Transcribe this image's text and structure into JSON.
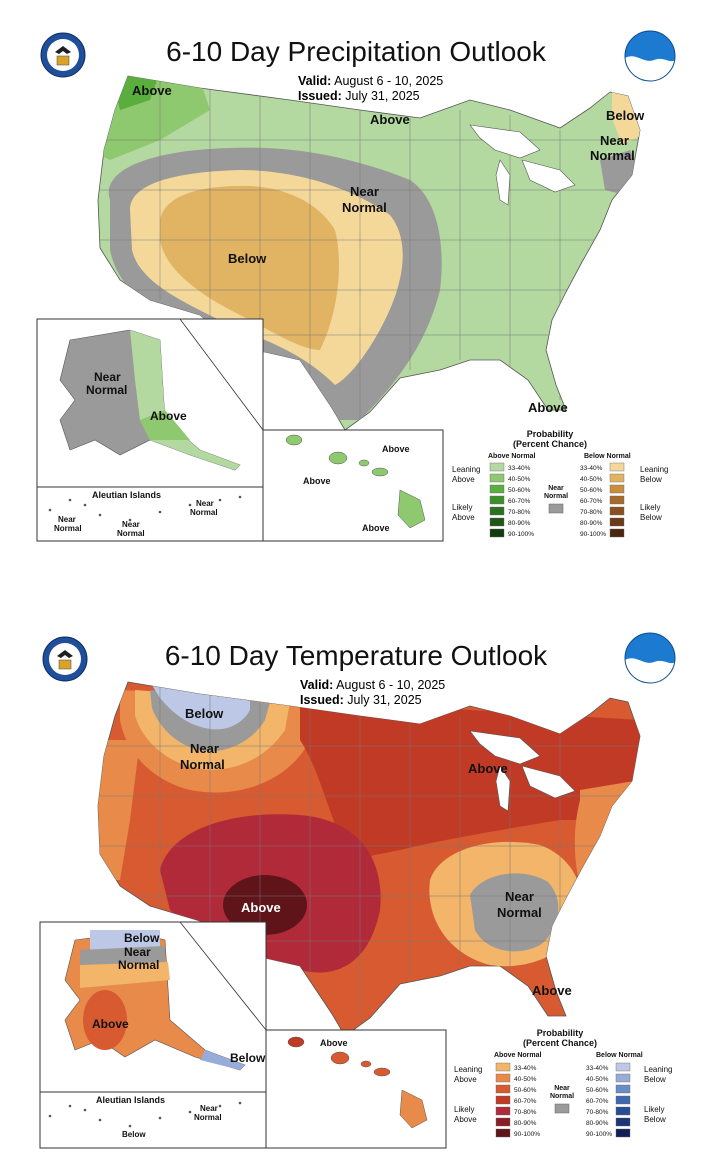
{
  "precip": {
    "title": "6-10 Day Precipitation Outlook",
    "valid_label": "Valid:",
    "valid_value": "August 6 - 10, 2025",
    "issued_label": "Issued:",
    "issued_value": "July 31, 2025",
    "labels": {
      "above_nw": "Above",
      "above_north": "Above",
      "below_ne": "Below",
      "near_ne": "Near",
      "normal_ne": "Normal",
      "near_central": "Near",
      "normal_central": "Normal",
      "below_sw": "Below",
      "above_fl": "Above",
      "ak_near": "Near",
      "ak_normal": "Normal",
      "ak_above": "Above",
      "aleutian_title": "Aleutian Islands",
      "aleut_near1": "Near",
      "aleut_normal1": "Normal",
      "aleut_near2": "Near",
      "aleut_normal2": "Normal",
      "aleut_near3": "Near",
      "aleut_normal3": "Normal",
      "hi_above1": "Above",
      "hi_above2": "Above",
      "hi_above3": "Above"
    },
    "legend": {
      "title1": "Probability",
      "title2": "(Percent Chance)",
      "above_header": "Above Normal",
      "below_header": "Below Normal",
      "leaning": "Leaning",
      "above": "Above",
      "likely": "Likely",
      "below": "Below",
      "near": "Near",
      "normal": "Normal",
      "ranges": [
        "33-40%",
        "40-50%",
        "50-60%",
        "60-70%",
        "70-80%",
        "80-90%",
        "90-100%"
      ],
      "above_colors": [
        "#b3d9a0",
        "#8ec86f",
        "#5aae3e",
        "#3d8f29",
        "#2a7220",
        "#1e5718",
        "#123d10"
      ],
      "below_colors": [
        "#f4d89a",
        "#e0b463",
        "#c98d3b",
        "#a86a2a",
        "#8a5021",
        "#6b3a18",
        "#4a2510"
      ],
      "near_color": "#9a9a9a"
    }
  },
  "temp": {
    "title": "6-10 Day Temperature Outlook",
    "valid_label": "Valid:",
    "valid_value": "August 6 - 10, 2025",
    "issued_label": "Issued:",
    "issued_value": "July 31, 2025",
    "labels": {
      "below_nw": "Below",
      "near_nw": "Near",
      "normal_nw": "Normal",
      "above_mi": "Above",
      "above_sw": "Above",
      "near_se": "Near",
      "normal_se": "Normal",
      "above_fl": "Above",
      "ak_below": "Below",
      "ak_near": "Near",
      "ak_normal": "Normal",
      "ak_above": "Above",
      "ak_below_se": "Below",
      "aleutian_title": "Aleutian Islands",
      "aleut_near": "Near",
      "aleut_normal": "Normal",
      "aleut_below": "Below",
      "hi_above": "Above"
    },
    "legend": {
      "title1": "Probability",
      "title2": "(Percent Chance)",
      "above_header": "Above Normal",
      "below_header": "Below Normal",
      "leaning": "Leaning",
      "above": "Above",
      "likely": "Likely",
      "below": "Below",
      "near": "Near",
      "normal": "Normal",
      "ranges": [
        "33-40%",
        "40-50%",
        "50-60%",
        "60-70%",
        "70-80%",
        "80-90%",
        "90-100%"
      ],
      "above_colors": [
        "#f2b56a",
        "#e88a4a",
        "#d85a30",
        "#c03a26",
        "#b02a3a",
        "#8a1e28",
        "#5e1418"
      ],
      "below_colors": [
        "#bcc8e6",
        "#97acd8",
        "#6a8cc6",
        "#3f68ae",
        "#274e94",
        "#1b357a",
        "#121f55"
      ],
      "near_color": "#9a9a9a"
    }
  }
}
